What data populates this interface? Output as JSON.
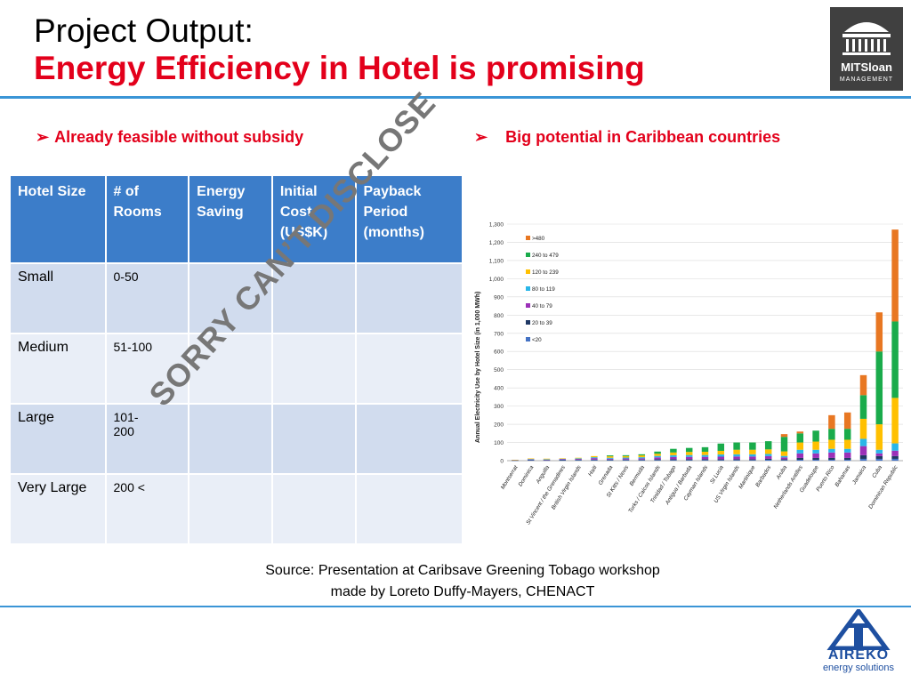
{
  "title": {
    "line1": "Project Output:",
    "line2": "Energy Efficiency in Hotel is promising"
  },
  "logo_mit": {
    "text": "MITSloan",
    "sub": "MANAGEMENT"
  },
  "bullets": {
    "left": "Already feasible without subsidy",
    "right": "Big potential in Caribbean countries",
    "arrow": "➢"
  },
  "table": {
    "headers": [
      [
        "Hotel Size"
      ],
      [
        "# of",
        "Rooms"
      ],
      [
        "Energy",
        "Saving"
      ],
      [
        "Initial",
        "Cost",
        "(US$K)"
      ],
      [
        "Payback",
        "Period",
        "(months)"
      ]
    ],
    "rows": [
      {
        "size": "Small",
        "rooms": "0-50"
      },
      {
        "size": "Medium",
        "rooms": "51-100"
      },
      {
        "size": "Large",
        "rooms": "101-200"
      },
      {
        "size": "Very Large",
        "rooms": "200 <"
      }
    ]
  },
  "stamp": "SORRY CAN’T DISCLOSE",
  "source": {
    "line1": "Source:  Presentation at Caribsave Greening Tobago workshop",
    "line2": "made by Loreto  Duffy-Mayers, CHENACT"
  },
  "logo_aireko": {
    "name": "AIREKO",
    "sub": "energy solutions"
  },
  "chart_data": {
    "type": "bar",
    "stacked": true,
    "ylabel": "Annual Electricity Use by Hotel Size (in 1,000 MWh)",
    "ylim": [
      0,
      1300
    ],
    "yticks": [
      "0",
      "100",
      "200",
      "300",
      "400",
      "500",
      "600",
      "700",
      "800",
      "900",
      "1,000",
      "1,100",
      "1,200",
      "1,300"
    ],
    "categories": [
      "Montserrat",
      "Dominica",
      "Anguilla",
      "St Vincent / the Grenadines",
      "British Virgin Islands",
      "Haiti",
      "Grenada",
      "St Kitts / Nevis",
      "Bermuda",
      "Turks / Caicos Islands",
      "Trinidad / Tobago",
      "Antigua / Barbuda",
      "Cayman Islands",
      "St Lucia",
      "US Virgin Islands",
      "Martinique",
      "Barbados",
      "Aruba",
      "Netherlands Antilles",
      "Guadeloupe",
      "Puerto Rico",
      "Bahamas",
      "Jamaica",
      "Cuba",
      "Dominican Republic"
    ],
    "legend": {
      "placement": "top-left"
    },
    "series": [
      {
        "name": "<20",
        "color": "#4472c4",
        "values": [
          1,
          3,
          2,
          2,
          3,
          3,
          3,
          3,
          3,
          3,
          3,
          3,
          3,
          3,
          3,
          3,
          5,
          3,
          5,
          5,
          5,
          5,
          10,
          10,
          10
        ]
      },
      {
        "name": "20 to 39",
        "color": "#1f3864",
        "values": [
          1,
          2,
          2,
          3,
          3,
          3,
          3,
          3,
          3,
          5,
          5,
          5,
          5,
          5,
          5,
          5,
          5,
          5,
          10,
          10,
          10,
          10,
          20,
          15,
          15
        ]
      },
      {
        "name": "40 to 79",
        "color": "#9b30b8",
        "values": [
          1,
          2,
          2,
          4,
          4,
          8,
          5,
          6,
          7,
          10,
          12,
          13,
          13,
          14,
          15,
          15,
          15,
          10,
          25,
          25,
          30,
          30,
          50,
          15,
          30
        ]
      },
      {
        "name": "80 to 119",
        "color": "#29b6e8",
        "values": [
          1,
          2,
          2,
          2,
          3,
          5,
          5,
          5,
          6,
          8,
          10,
          10,
          10,
          12,
          12,
          12,
          12,
          8,
          20,
          20,
          20,
          20,
          40,
          20,
          40
        ]
      },
      {
        "name": "120 to 239",
        "color": "#ffc000",
        "values": [
          1,
          3,
          3,
          2,
          3,
          6,
          8,
          8,
          10,
          12,
          15,
          17,
          18,
          20,
          25,
          25,
          25,
          25,
          40,
          45,
          50,
          50,
          110,
          140,
          250
        ]
      },
      {
        "name": "240 to 479",
        "color": "#1aab4b",
        "values": [
          0,
          0,
          0,
          0,
          0,
          0,
          5,
          5,
          6,
          12,
          20,
          22,
          25,
          40,
          40,
          40,
          45,
          80,
          50,
          60,
          60,
          60,
          130,
          400,
          420
        ]
      },
      {
        "name": ">480",
        "color": "#e87722",
        "values": [
          0,
          0,
          0,
          0,
          0,
          0,
          0,
          0,
          0,
          0,
          0,
          0,
          0,
          0,
          0,
          0,
          0,
          15,
          10,
          0,
          75,
          90,
          110,
          215,
          505
        ]
      }
    ]
  }
}
